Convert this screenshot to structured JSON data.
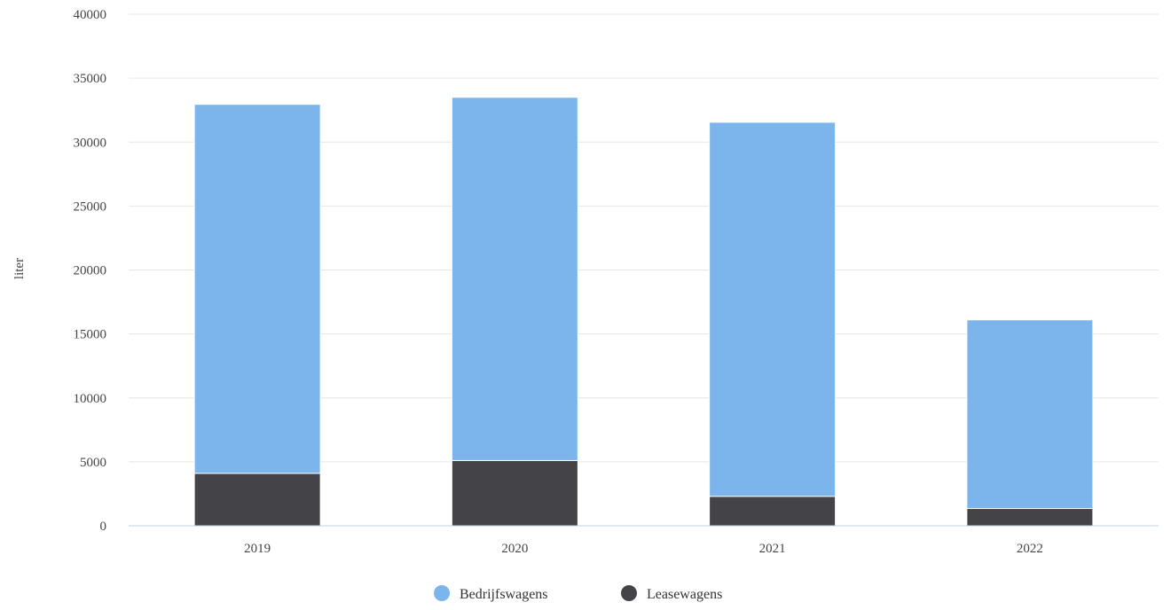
{
  "chart_data": {
    "type": "bar",
    "stacked": true,
    "categories": [
      "2019",
      "2020",
      "2021",
      "2022"
    ],
    "series": [
      {
        "name": "Leasewagens",
        "color": "#434348",
        "values": [
          4100,
          5100,
          2300,
          1350
        ]
      },
      {
        "name": "Bedrijfswagens",
        "color": "#7cb5ec",
        "values": [
          28850,
          28400,
          29250,
          14750
        ]
      }
    ],
    "ylabel": "liter",
    "xlabel": "",
    "ylim": [
      0,
      40000
    ],
    "yticks": [
      0,
      5000,
      10000,
      15000,
      20000,
      25000,
      30000,
      35000,
      40000
    ],
    "grid": true,
    "legend": {
      "position": "bottom-center",
      "items": [
        {
          "label": "Bedrijfswagens",
          "color": "#7cb5ec",
          "marker": "circle"
        },
        {
          "label": "Leasewagens",
          "color": "#434348",
          "marker": "circle"
        }
      ]
    }
  }
}
